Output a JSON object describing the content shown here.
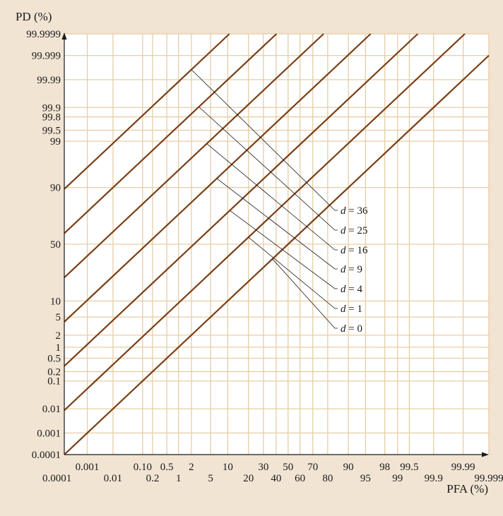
{
  "chart_data": {
    "type": "line",
    "xlabel": "PFA (%)",
    "ylabel": "PD (%)",
    "x_scale": "probability",
    "y_scale": "probability",
    "xlim": [
      0.0001,
      99.999
    ],
    "ylim": [
      0.0001,
      99.9999
    ],
    "grid": true,
    "x_ticks_upper": [
      "0.001",
      "0.10",
      "0.5",
      "2",
      "10",
      "30",
      "50",
      "70",
      "90",
      "98",
      "99.5",
      "99.99"
    ],
    "x_ticks_lower": [
      "0.0001",
      "0.01",
      "0.2",
      "1",
      "5",
      "20",
      "40",
      "60",
      "80",
      "95",
      "99",
      "99.9",
      "99.999"
    ],
    "y_ticks": [
      "99.9999",
      "99.999",
      "99.99",
      "99.9",
      "99.8",
      "99.5",
      "99",
      "90",
      "50",
      "10",
      "5",
      "2",
      "1",
      "0.5",
      "0.2",
      "0.1",
      "0.01",
      "0.001",
      "0.0001"
    ],
    "series": [
      {
        "name": "d = 36",
        "label_text": "d",
        "label_value": "= 36",
        "d": 36
      },
      {
        "name": "d = 25",
        "label_text": "d",
        "label_value": "= 25",
        "d": 25
      },
      {
        "name": "d = 16",
        "label_text": "d",
        "label_value": "= 16",
        "d": 16
      },
      {
        "name": "d = 9",
        "label_text": "d",
        "label_value": "= 9",
        "d": 9
      },
      {
        "name": "d = 4",
        "label_text": "d",
        "label_value": "= 4",
        "d": 4
      },
      {
        "name": "d = 1",
        "label_text": "d",
        "label_value": "= 1",
        "d": 1
      },
      {
        "name": "d = 0",
        "label_text": "d",
        "label_value": "= 0",
        "d": 0
      }
    ],
    "colors": {
      "background": "#f1e4d3",
      "plot_background": "#ffffff",
      "grid": "#e7cda6",
      "curve": "#7a3e14",
      "axis": "#1a1a1a"
    }
  }
}
